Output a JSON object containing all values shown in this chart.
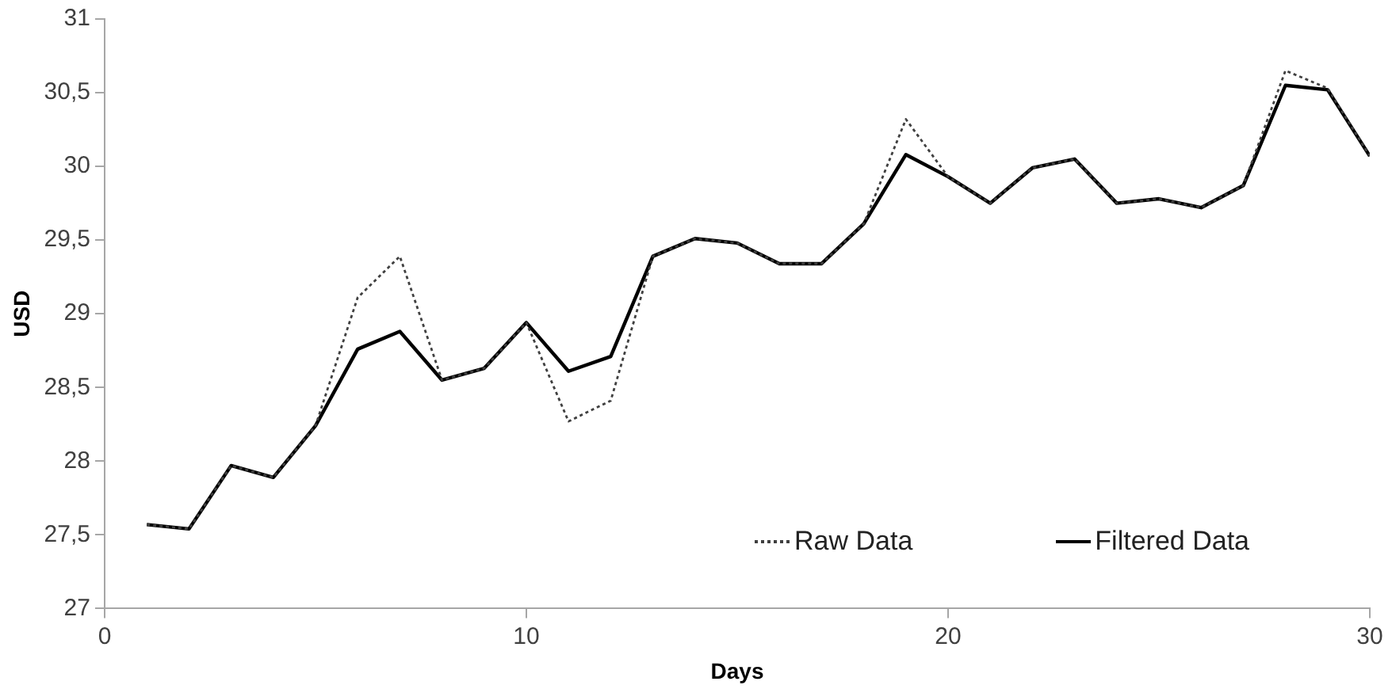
{
  "chart_data": {
    "type": "line",
    "xlabel": "Days",
    "ylabel": "USD",
    "x": [
      1,
      2,
      3,
      4,
      5,
      6,
      7,
      8,
      9,
      10,
      11,
      12,
      13,
      14,
      15,
      16,
      17,
      18,
      19,
      20,
      21,
      22,
      23,
      24,
      25,
      26,
      27,
      28,
      29,
      30
    ],
    "series": [
      {
        "name": "Raw Data",
        "color": "#404040",
        "line_style": "dotted",
        "values": [
          27.57,
          27.54,
          27.97,
          27.89,
          28.24,
          29.11,
          29.39,
          28.55,
          28.63,
          28.94,
          28.27,
          28.41,
          29.39,
          29.51,
          29.48,
          29.34,
          29.34,
          29.61,
          30.32,
          29.93,
          29.75,
          29.99,
          30.05,
          29.75,
          29.78,
          29.72,
          29.87,
          30.65,
          30.53,
          30.07
        ]
      },
      {
        "name": "Filtered Data",
        "color": "#000000",
        "line_style": "solid",
        "values": [
          27.57,
          27.54,
          27.97,
          27.89,
          28.24,
          28.76,
          28.88,
          28.55,
          28.63,
          28.94,
          28.61,
          28.71,
          29.39,
          29.51,
          29.48,
          29.34,
          29.34,
          29.61,
          30.08,
          29.93,
          29.75,
          29.99,
          30.05,
          29.75,
          29.78,
          29.72,
          29.87,
          30.55,
          30.52,
          30.07
        ]
      }
    ],
    "xlim": [
      0,
      30
    ],
    "xticks": [
      0,
      10,
      20,
      30
    ],
    "ylim": [
      27,
      31
    ],
    "yticks": [
      27,
      {
        "value": 27.5,
        "label": "27,5"
      },
      28,
      {
        "value": 28.5,
        "label": "28,5"
      },
      29,
      {
        "value": 29.5,
        "label": "29,5"
      },
      30,
      {
        "value": 30.5,
        "label": "30,5"
      },
      31
    ],
    "grid": false,
    "legend": "bottom right",
    "marker": "none"
  }
}
